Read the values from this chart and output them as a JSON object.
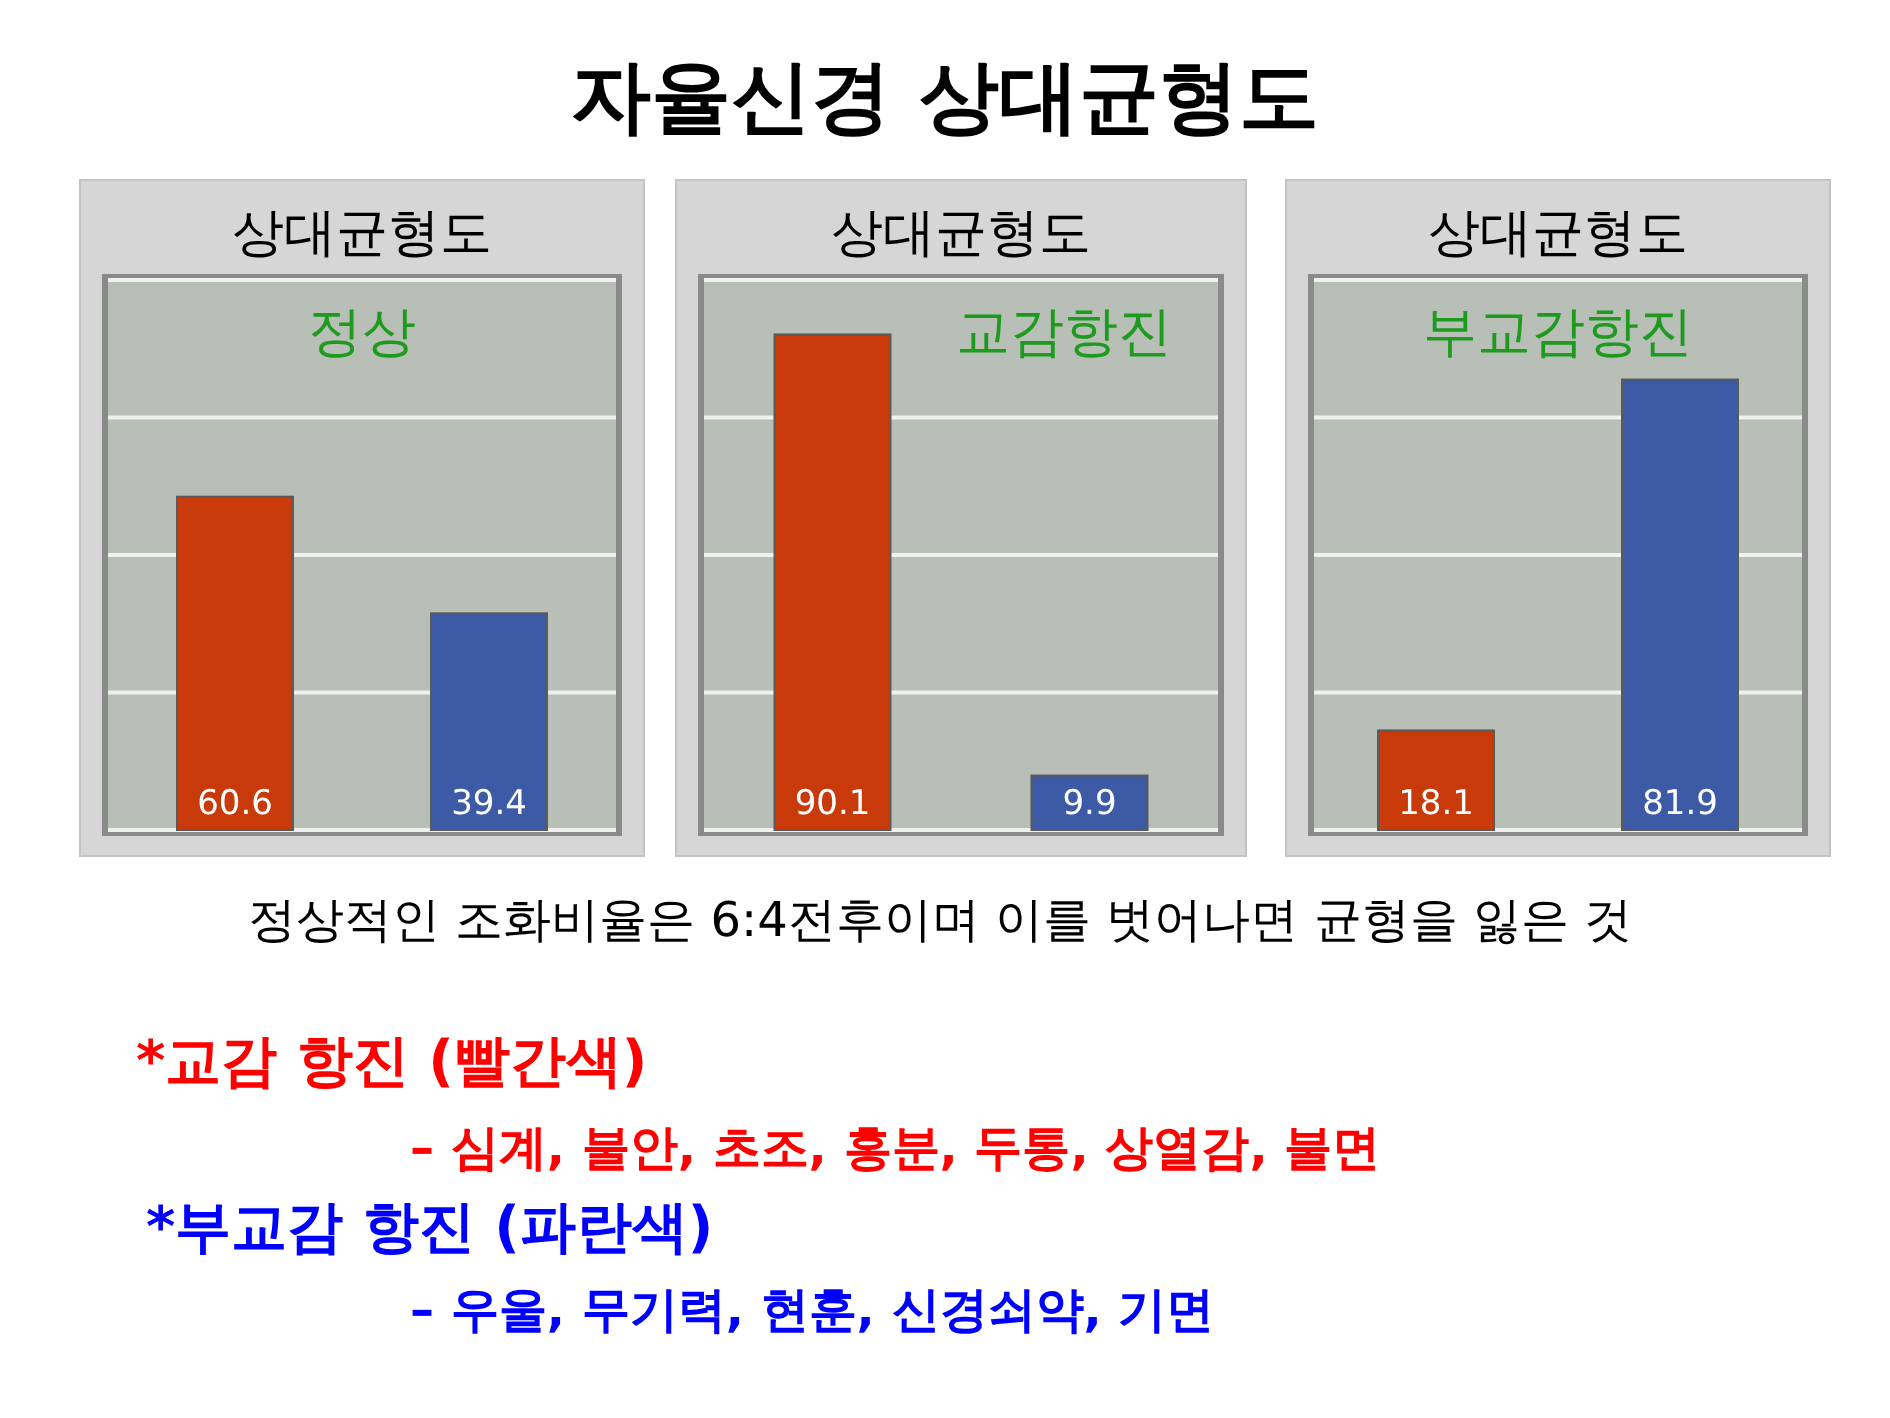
{
  "chart_data": [
    {
      "type": "other",
      "title": "자율신경 상대균형도"
    },
    {
      "type": "bar",
      "title": "상대균형도",
      "categories": [
        null,
        null
      ],
      "values": [
        60.6,
        39.4
      ],
      "colors": [
        "#c83a0a",
        "#3c5aa5"
      ],
      "ylim": [
        0,
        100
      ],
      "yticks": [
        {
          "value": 0,
          "label": null
        },
        {
          "value": 25,
          "label": null
        },
        {
          "value": 50,
          "label": null
        },
        {
          "value": 75,
          "label": null
        },
        {
          "value": 100,
          "label": null
        }
      ],
      "grid": "y",
      "data_labels": true,
      "annotations": [
        "정상"
      ]
    },
    {
      "type": "bar",
      "title": "상대균형도",
      "categories": [
        null,
        null
      ],
      "values": [
        90.1,
        9.9
      ],
      "colors": [
        "#c83a0a",
        "#3c5aa5"
      ],
      "ylim": [
        0,
        100
      ],
      "yticks": [
        {
          "value": 0,
          "label": null
        },
        {
          "value": 25,
          "label": null
        },
        {
          "value": 50,
          "label": null
        },
        {
          "value": 75,
          "label": null
        },
        {
          "value": 100,
          "label": null
        }
      ],
      "grid": "y",
      "data_labels": true,
      "annotations": [
        "교감항진"
      ]
    },
    {
      "type": "bar",
      "title": "상대균형도",
      "categories": [
        null,
        null
      ],
      "values": [
        18.1,
        81.9
      ],
      "colors": [
        "#c83a0a",
        "#3c5aa5"
      ],
      "ylim": [
        0,
        100
      ],
      "yticks": [
        {
          "value": 0,
          "label": null
        },
        {
          "value": 25,
          "label": null
        },
        {
          "value": 50,
          "label": null
        },
        {
          "value": 75,
          "label": null
        },
        {
          "value": 100,
          "label": null
        }
      ],
      "grid": "y",
      "data_labels": true,
      "annotations": [
        "부교감항진"
      ]
    },
    {
      "type": "other",
      "annotations": [
        "정상적인 조화비율은 6:4전후이며 이를 벗어나면 균형을 잃은 것",
        "*교감 항진 (빨간색)",
        "– 심계, 불안, 초조, 홍분, 두통, 상열감, 불면",
        "*부교감 항진 (파란색)",
        "– 우울, 무기력, 현훈, 신경쇠약, 기면"
      ],
      "colors": [
        "#000000",
        "#ff0000",
        "#ff0000",
        "#0000ff",
        "#0000ff"
      ]
    }
  ]
}
